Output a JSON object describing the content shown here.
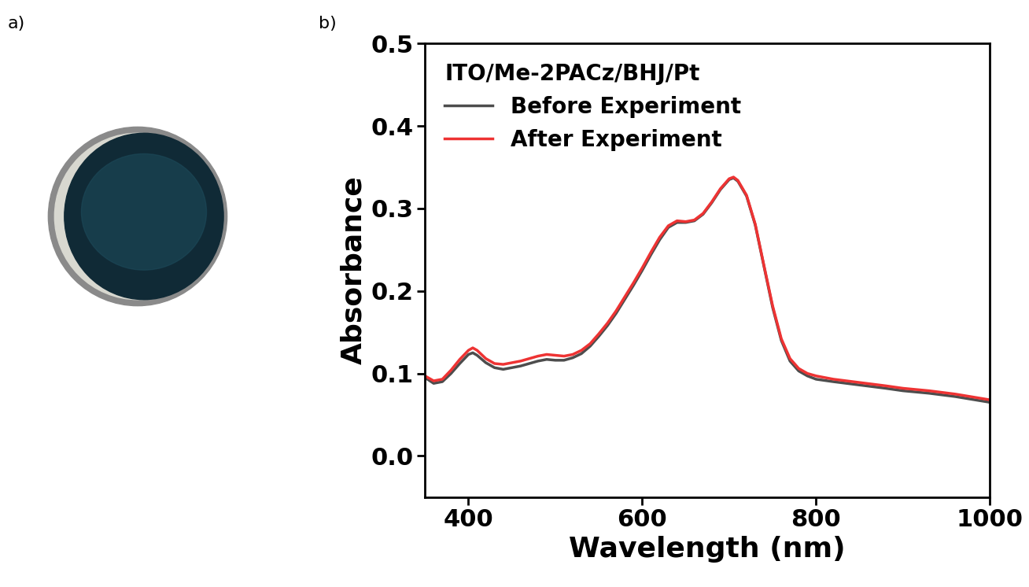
{
  "panel_labels": [
    "a)",
    "b)"
  ],
  "chart_data": {
    "type": "line",
    "legend_title": "ITO/Me-2PACz/BHJ/Pt",
    "x_label": "Wavelength (nm)",
    "y_label": "Absorbance",
    "x": [
      350,
      360,
      370,
      380,
      390,
      400,
      405,
      410,
      420,
      430,
      440,
      450,
      460,
      470,
      480,
      490,
      500,
      510,
      520,
      530,
      540,
      550,
      560,
      570,
      580,
      590,
      600,
      610,
      620,
      630,
      640,
      650,
      660,
      670,
      680,
      690,
      700,
      705,
      710,
      720,
      730,
      740,
      750,
      760,
      770,
      780,
      790,
      800,
      820,
      850,
      880,
      900,
      930,
      960,
      1000
    ],
    "series": [
      {
        "name": "Before Experiment",
        "color": "#4d4d4d",
        "values": [
          0.095,
          0.088,
          0.09,
          0.1,
          0.112,
          0.123,
          0.125,
          0.122,
          0.113,
          0.107,
          0.105,
          0.107,
          0.109,
          0.112,
          0.115,
          0.117,
          0.116,
          0.116,
          0.119,
          0.124,
          0.133,
          0.145,
          0.158,
          0.173,
          0.19,
          0.207,
          0.225,
          0.244,
          0.262,
          0.277,
          0.283,
          0.283,
          0.285,
          0.293,
          0.307,
          0.323,
          0.335,
          0.337,
          0.333,
          0.315,
          0.28,
          0.23,
          0.18,
          0.14,
          0.115,
          0.103,
          0.097,
          0.093,
          0.09,
          0.086,
          0.082,
          0.079,
          0.076,
          0.072,
          0.065
        ]
      },
      {
        "name": "After Experiment",
        "color": "#ee3333",
        "values": [
          0.097,
          0.091,
          0.093,
          0.104,
          0.117,
          0.128,
          0.131,
          0.128,
          0.118,
          0.112,
          0.111,
          0.113,
          0.115,
          0.118,
          0.121,
          0.123,
          0.122,
          0.121,
          0.123,
          0.128,
          0.136,
          0.148,
          0.161,
          0.176,
          0.193,
          0.21,
          0.228,
          0.247,
          0.265,
          0.279,
          0.285,
          0.284,
          0.286,
          0.294,
          0.308,
          0.324,
          0.336,
          0.338,
          0.334,
          0.316,
          0.281,
          0.231,
          0.182,
          0.142,
          0.118,
          0.106,
          0.1,
          0.097,
          0.093,
          0.089,
          0.085,
          0.082,
          0.079,
          0.075,
          0.068
        ]
      }
    ],
    "xlim": [
      350,
      1000
    ],
    "xticks": [
      400,
      600,
      800,
      1000
    ],
    "ylim": [
      -0.05,
      0.5
    ],
    "yticks": [
      0.0,
      0.1,
      0.2,
      0.3,
      0.4,
      0.5
    ],
    "legend": "upper left"
  }
}
